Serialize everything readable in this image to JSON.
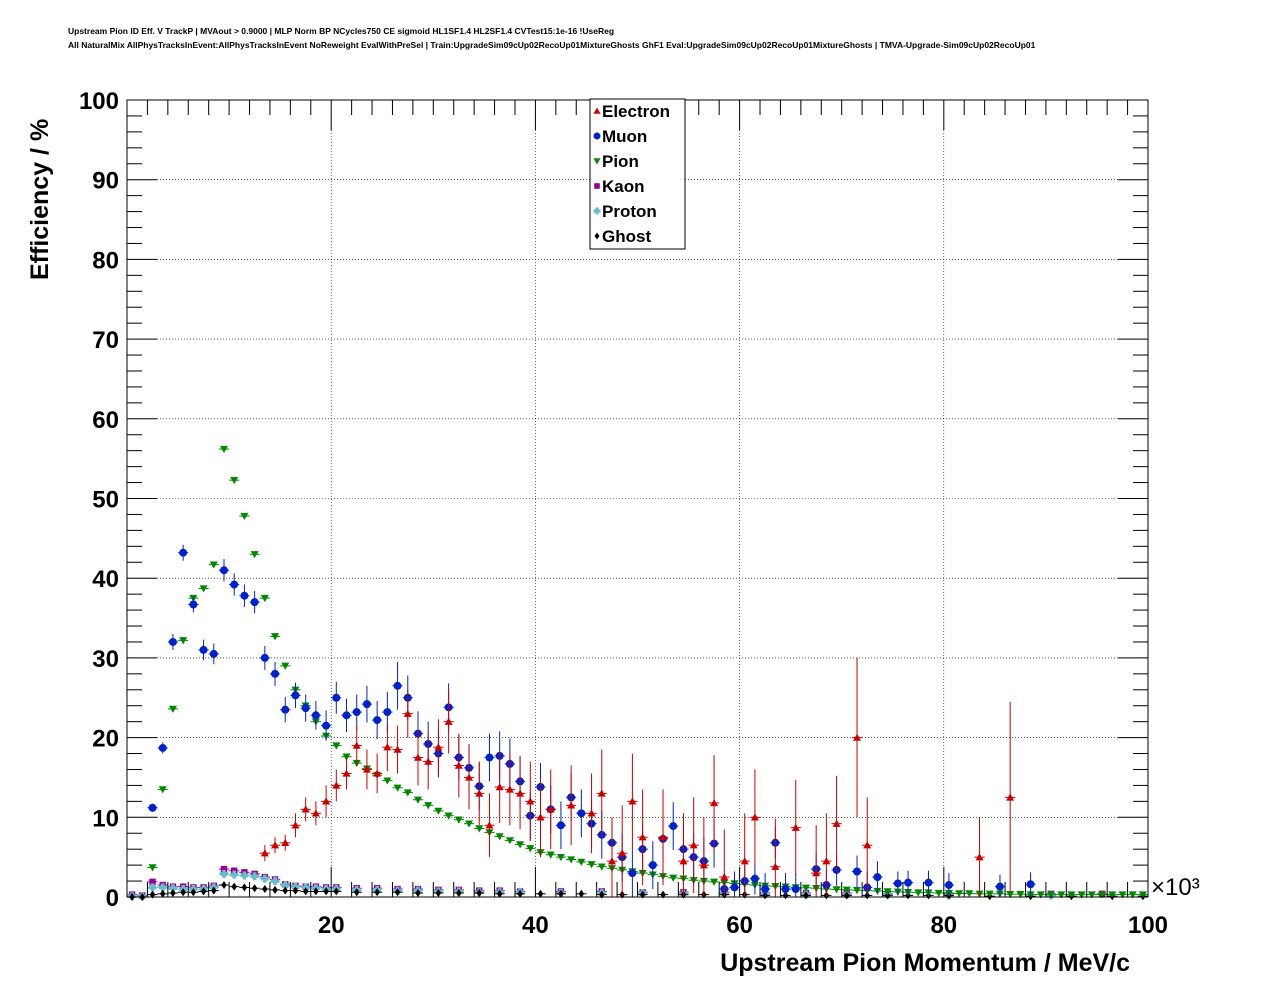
{
  "header": {
    "line1": "Upstream Pion ID Eff. V TrackP | MVAout > 0.9000 | MLP Norm BP NCycles750 CE sigmoid HL1SF1.4 HL2SF1.4 CVTest15:1e-16 !UseReg",
    "line2": "All NaturalMix AllPhysTracksInEvent:AllPhysTracksInEvent NoReweight EvalWithPreSel | Train:UpgradeSim09cUp02RecoUp01MixtureGhosts GhF1 Eval:UpgradeSim09cUp02RecoUp01MixtureGhosts | TMVA-Upgrade-Sim09cUp02RecoUp01"
  },
  "chart_data": {
    "type": "scatter",
    "xlabel": "Upstream Pion Momentum / MeV/c",
    "ylabel": "Efficiency / %",
    "x_multiplier_label": "×10³",
    "xlim": [
      0,
      100
    ],
    "ylim": [
      0,
      100
    ],
    "x_ticks": [
      20,
      40,
      60,
      80,
      100
    ],
    "y_ticks": [
      0,
      10,
      20,
      30,
      40,
      50,
      60,
      70,
      80,
      90,
      100
    ],
    "grid": true,
    "legend_position": "top-center",
    "series": [
      {
        "name": "Electron",
        "color": "#cc0000",
        "marker": "triangle-up",
        "x": [
          13.5,
          14.5,
          15.5,
          16.5,
          17.5,
          18.5,
          19.5,
          20.5,
          21.5,
          22.5,
          23.5,
          24.5,
          25.5,
          26.5,
          27.5,
          28.5,
          29.5,
          30.5,
          31.5,
          32.5,
          33.5,
          34.5,
          35.5,
          36.5,
          37.5,
          38.5,
          39.5,
          40.5,
          41.5,
          43.5,
          45.5,
          46.5,
          47.5,
          48.5,
          49.5,
          50.5,
          52.5,
          54.5,
          55.5,
          56.5,
          57.5,
          58.5,
          60.5,
          61.5,
          63.5,
          65.5,
          67.5,
          68.5,
          69.5,
          71.5,
          72.5,
          83.5,
          86.5
        ],
        "y": [
          5.5,
          6.5,
          6.8,
          9,
          11,
          10.5,
          12,
          14,
          15.5,
          19,
          16,
          15.5,
          18.8,
          18.5,
          23,
          17.5,
          17,
          18.8,
          22,
          16.5,
          15,
          13,
          9,
          13.8,
          13.5,
          13,
          12,
          10,
          11,
          11.5,
          10.5,
          13,
          4.5,
          5.5,
          12,
          7.5,
          7.5,
          4.5,
          6.5,
          4,
          11.8,
          2.5,
          4.5,
          10,
          3.8,
          8.7,
          3,
          4.5,
          9.2,
          20,
          6.5,
          5,
          12.5
        ],
        "err": [
          1,
          1,
          1,
          1.5,
          1.5,
          1.5,
          2,
          2,
          2,
          2.5,
          2.5,
          2.5,
          3,
          3,
          3,
          3.5,
          3.5,
          3.5,
          4,
          4,
          4,
          4,
          4,
          4.5,
          4.5,
          4.5,
          5,
          5,
          5,
          5,
          5,
          5.5,
          5.5,
          6,
          6,
          6,
          6,
          6,
          6,
          6,
          6,
          6,
          6,
          6,
          6,
          6,
          6,
          6,
          6,
          10,
          6,
          5,
          12
        ]
      },
      {
        "name": "Muon",
        "color": "#0022cc",
        "marker": "circle",
        "x": [
          2.5,
          3.5,
          4.5,
          5.5,
          6.5,
          7.5,
          8.5,
          9.5,
          10.5,
          11.5,
          12.5,
          13.5,
          14.5,
          15.5,
          16.5,
          17.5,
          18.5,
          19.5,
          20.5,
          21.5,
          22.5,
          23.5,
          24.5,
          25.5,
          26.5,
          27.5,
          28.5,
          29.5,
          30.5,
          31.5,
          32.5,
          33.5,
          34.5,
          35.5,
          36.5,
          37.5,
          38.5,
          39.5,
          40.5,
          41.5,
          42.5,
          43.5,
          44.5,
          45.5,
          46.5,
          47.5,
          48.5,
          49.5,
          50.5,
          51.5,
          52.5,
          53.5,
          54.5,
          55.5,
          56.5,
          57.5,
          58.5,
          59.5,
          60.5,
          61.5,
          62.5,
          63.5,
          64.5,
          65.5,
          67.5,
          68.5,
          69.5,
          71.5,
          72.5,
          73.5,
          75.5,
          76.5,
          78.5,
          80.5,
          85.5,
          88.5
        ],
        "y": [
          11.2,
          18.7,
          32,
          43.2,
          36.7,
          31,
          30.5,
          41,
          39.2,
          37.8,
          37,
          30,
          28,
          23.5,
          25.3,
          23.7,
          22.8,
          21.5,
          25,
          22.8,
          23.2,
          24.2,
          22.2,
          23.2,
          26.5,
          25,
          20.5,
          19.2,
          18,
          23.8,
          17.5,
          16.2,
          13.9,
          17.5,
          17.7,
          16.7,
          14.5,
          10.2,
          13.8,
          11,
          9,
          12.5,
          10.5,
          9.2,
          7.8,
          6.8,
          5,
          3,
          6,
          4,
          7.3,
          8.9,
          6,
          5,
          4.5,
          6.7,
          1,
          1.2,
          2,
          2.3,
          1,
          6.8,
          1,
          1,
          3.5,
          1.5,
          3.4,
          3.2,
          1.2,
          2.5,
          1.7,
          1.8,
          1.8,
          1.5,
          1.3,
          1.6
        ],
        "err": [
          0.5,
          0.7,
          1,
          1,
          1,
          1.3,
          1.3,
          1.4,
          1.4,
          1.4,
          1.4,
          1.5,
          1.5,
          1.6,
          1.6,
          1.7,
          1.8,
          1.9,
          2,
          2.1,
          2.2,
          2.3,
          2.4,
          2.5,
          3,
          2.8,
          2.8,
          2.8,
          3,
          3,
          2.9,
          3,
          3,
          3,
          3.1,
          3.2,
          3.2,
          3,
          3,
          3,
          3,
          3,
          3,
          3,
          3,
          3,
          3,
          3,
          3,
          3,
          3,
          3,
          3,
          3,
          3,
          3,
          2,
          2,
          2,
          2,
          2,
          2,
          2,
          2,
          2,
          2,
          2,
          2,
          2,
          2,
          1.5,
          1.5,
          1.5,
          1.5,
          1.5,
          1.5
        ]
      },
      {
        "name": "Pion",
        "color": "#008800",
        "marker": "triangle-down",
        "x": [
          2.5,
          3.5,
          4.5,
          5.5,
          6.5,
          7.5,
          8.5,
          9.5,
          10.5,
          11.5,
          12.5,
          13.5,
          14.5,
          15.5,
          16.5,
          17.5,
          18.5,
          19.5,
          20.5,
          21.5,
          22.5,
          23.5,
          24.5,
          25.5,
          26.5,
          27.5,
          28.5,
          29.5,
          30.5,
          31.5,
          32.5,
          33.5,
          34.5,
          35.5,
          36.5,
          37.5,
          38.5,
          39.5,
          40.5,
          41.5,
          42.5,
          43.5,
          44.5,
          45.5,
          46.5,
          47.5,
          48.5,
          49.5,
          50.5,
          51.5,
          52.5,
          53.5,
          54.5,
          55.5,
          56.5,
          57.5,
          58.5,
          59.5,
          60.5,
          61.5,
          62.5,
          63.5,
          64.5,
          65.5,
          66.5,
          67.5,
          68.5,
          69.5,
          70.5,
          71.5,
          72.5,
          73.5,
          74.5,
          75.5,
          76.5,
          77.5,
          78.5,
          79.5,
          80.5,
          81.5,
          82.5,
          83.5,
          84.5,
          85.5,
          86.5,
          87.5,
          88.5,
          89.5,
          90.5,
          91.5,
          92.5,
          93.5,
          94.5,
          95.5,
          96.5,
          97.5,
          98.5,
          99.5
        ],
        "y": [
          3.7,
          13.5,
          23.6,
          32.2,
          37.5,
          38.7,
          41.7,
          56.2,
          52.3,
          47.8,
          43,
          37.5,
          32.7,
          29,
          26,
          24,
          22,
          20.2,
          19,
          17.6,
          16.8,
          16.1,
          15.3,
          14.6,
          13.7,
          13.1,
          12.2,
          11.5,
          10.8,
          10.2,
          9.7,
          9.2,
          8.6,
          8.1,
          7.6,
          7.1,
          6.6,
          6.1,
          5.6,
          5.3,
          5,
          4.7,
          4.4,
          4.1,
          3.8,
          3.6,
          3.4,
          3.2,
          3,
          2.8,
          2.6,
          2.4,
          2.3,
          2.1,
          2,
          1.9,
          1.8,
          1.7,
          1.6,
          1.5,
          1.4,
          1.35,
          1.3,
          1.2,
          1.15,
          1.1,
          1,
          0.95,
          0.9,
          0.85,
          0.8,
          0.75,
          0.7,
          0.65,
          0.6,
          0.55,
          0.55,
          0.5,
          0.5,
          0.45,
          0.45,
          0.4,
          0.4,
          0.4,
          0.35,
          0.35,
          0.3,
          0.3,
          0.3,
          0.3,
          0.3,
          0.3,
          0.3,
          0.3,
          0.3,
          0.3,
          0.3,
          0.3
        ]
      },
      {
        "name": "Kaon",
        "color": "#990099",
        "marker": "square",
        "x": [
          0.5,
          1.5,
          2.5,
          3.5,
          4.5,
          5.5,
          6.5,
          7.5,
          8.5,
          9.5,
          10.5,
          11.5,
          12.5,
          13.5,
          14.5,
          15.5,
          16.5,
          17.5,
          18.5,
          19.5,
          20.5,
          22.5,
          24.5,
          26.5,
          28.5,
          30.5,
          32.5,
          34.5,
          36.5,
          38.5,
          42.5,
          46.5,
          50.5,
          54.5,
          58.5,
          62.5,
          66.5,
          70.5,
          74.5,
          80.5,
          90.5,
          95.5
        ],
        "y": [
          0.3,
          0.2,
          1.9,
          1.5,
          1.3,
          1.3,
          1.2,
          1.2,
          1.4,
          3.5,
          3.3,
          3.1,
          2.9,
          2.5,
          2.2,
          1.6,
          1.4,
          1.3,
          1.3,
          1.2,
          1.2,
          1.1,
          1.1,
          1,
          1,
          0.9,
          0.9,
          0.8,
          0.8,
          0.7,
          0.7,
          0.7,
          0.6,
          0.6,
          0.6,
          0.5,
          0.5,
          0.5,
          0.4,
          0.4,
          0.4,
          0.4
        ]
      },
      {
        "name": "Proton",
        "color": "#66bbcc",
        "marker": "cross",
        "x": [
          0.5,
          1.5,
          2.5,
          3.5,
          4.5,
          5.5,
          6.5,
          7.5,
          8.5,
          9.5,
          10.5,
          11.5,
          12.5,
          13.5,
          14.5,
          15.5,
          16.5,
          17.5,
          18.5,
          19.5,
          20.5,
          22.5,
          24.5,
          26.5,
          28.5,
          30.5,
          32.5,
          34.5,
          36.5,
          38.5,
          42.5,
          46.5,
          50.5,
          54.5,
          58.5,
          62.5,
          66.5,
          70.5,
          74.5,
          80.5,
          90.5
        ],
        "y": [
          0.1,
          0.1,
          1.2,
          1.2,
          1.1,
          1,
          1,
          1,
          1.2,
          2.9,
          2.8,
          2.7,
          2.6,
          2.3,
          2,
          1.5,
          1.3,
          1.2,
          1.1,
          1,
          1,
          0.9,
          0.9,
          0.8,
          0.8,
          0.7,
          0.7,
          0.6,
          0.6,
          0.6,
          0.5,
          0.5,
          0.5,
          0.4,
          0.4,
          0.4,
          0.3,
          0.3,
          0.3,
          0.2,
          0.2
        ]
      },
      {
        "name": "Ghost",
        "color": "#000000",
        "marker": "diamond",
        "x": [
          0.5,
          1.5,
          2.5,
          3.5,
          4.5,
          5.5,
          6.5,
          7.5,
          8.5,
          9.5,
          10.5,
          11.5,
          12.5,
          13.5,
          14.5,
          15.5,
          16.5,
          17.5,
          18.5,
          19.5,
          20.5,
          22.5,
          24.5,
          26.5,
          28.5,
          30.5,
          32.5,
          34.5,
          36.5,
          38.5,
          40.5,
          42.5,
          44.5,
          46.5,
          48.5,
          50.5,
          52.5,
          54.5,
          56.5,
          58.5,
          60.5,
          62.5,
          64.5,
          66.5,
          68.5,
          70.5,
          72.5,
          74.5,
          76.5,
          78.5,
          80.5,
          84.5,
          88.5,
          92.5,
          96.5,
          99.5
        ],
        "y": [
          0,
          0,
          0.3,
          0.4,
          0.5,
          0.6,
          0.6,
          0.7,
          0.8,
          1.5,
          1.3,
          1.2,
          1.1,
          1,
          0.9,
          0.8,
          0.8,
          0.7,
          0.7,
          0.7,
          0.7,
          0.6,
          0.6,
          0.6,
          0.5,
          0.5,
          0.5,
          0.5,
          0.4,
          0.4,
          0.4,
          0.4,
          0.4,
          0.3,
          0.3,
          0.3,
          0.3,
          0.3,
          0.3,
          0.3,
          0.3,
          0.2,
          0.2,
          0.2,
          0.2,
          0.2,
          0.2,
          0.2,
          0.2,
          0.2,
          0.2,
          0.1,
          0.1,
          0.1,
          0.1,
          0.1
        ]
      }
    ]
  }
}
